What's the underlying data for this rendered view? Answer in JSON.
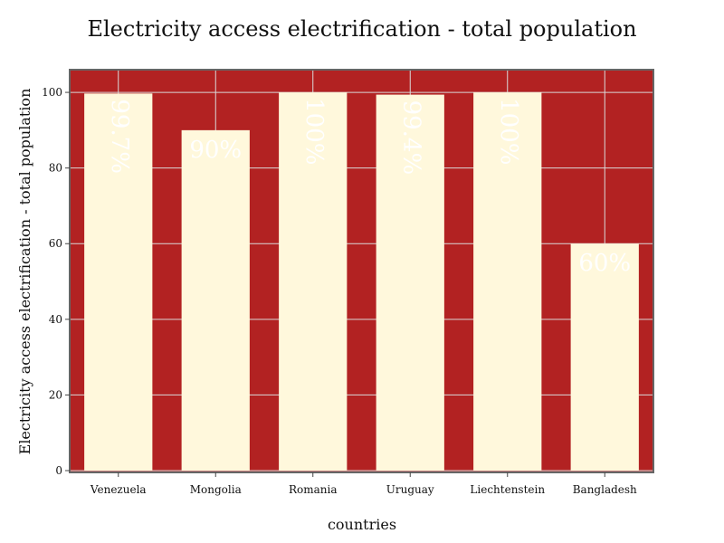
{
  "chart_data": {
    "type": "bar",
    "title": "Electricity access electrification - total population",
    "xlabel": "countries",
    "ylabel": "Electricity access electrification - total population",
    "categories": [
      "Venezuela",
      "Mongolia",
      "Romania",
      "Uruguay",
      "Liechtenstein",
      "Bangladesh"
    ],
    "values": [
      99.7,
      90,
      100,
      99.4,
      100,
      60
    ],
    "data_labels": [
      "99.7%",
      "90%",
      "100%",
      "99.4%",
      "100%",
      "60%"
    ],
    "label_rotated": [
      true,
      false,
      true,
      true,
      true,
      false
    ],
    "ylim": [
      0,
      106
    ],
    "yticks": [
      0,
      20,
      40,
      60,
      80,
      100
    ],
    "grid": true,
    "colors": {
      "plot_background": "#b22222",
      "bar_fill": "#fff8dc",
      "grid": "#d9d9d9",
      "frame": "#666666",
      "data_label": "#ffffff"
    }
  }
}
